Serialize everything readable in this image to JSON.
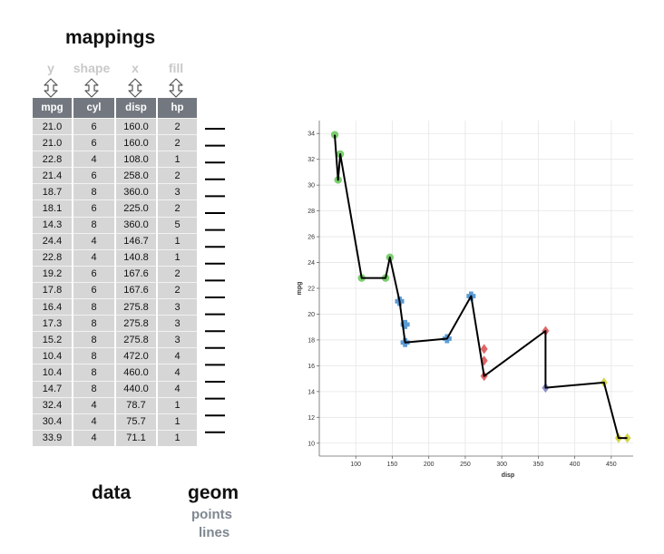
{
  "titles": {
    "mappings": "mappings",
    "data": "data",
    "geom": "geom"
  },
  "geom": {
    "points": "points",
    "lines": "lines"
  },
  "mappings": [
    {
      "aes": "y",
      "column": "mpg"
    },
    {
      "aes": "shape",
      "column": "cyl"
    },
    {
      "aes": "x",
      "column": "disp"
    },
    {
      "aes": "fill",
      "column": "hp"
    }
  ],
  "table": {
    "headers": [
      "mpg",
      "cyl",
      "disp",
      "hp"
    ],
    "rows": [
      [
        "21.0",
        "6",
        "160.0",
        "2"
      ],
      [
        "21.0",
        "6",
        "160.0",
        "2"
      ],
      [
        "22.8",
        "4",
        "108.0",
        "1"
      ],
      [
        "21.4",
        "6",
        "258.0",
        "2"
      ],
      [
        "18.7",
        "8",
        "360.0",
        "3"
      ],
      [
        "18.1",
        "6",
        "225.0",
        "2"
      ],
      [
        "14.3",
        "8",
        "360.0",
        "5"
      ],
      [
        "24.4",
        "4",
        "146.7",
        "1"
      ],
      [
        "22.8",
        "4",
        "140.8",
        "1"
      ],
      [
        "19.2",
        "6",
        "167.6",
        "2"
      ],
      [
        "17.8",
        "6",
        "167.6",
        "2"
      ],
      [
        "16.4",
        "8",
        "275.8",
        "3"
      ],
      [
        "17.3",
        "8",
        "275.8",
        "3"
      ],
      [
        "15.2",
        "8",
        "275.8",
        "3"
      ],
      [
        "10.4",
        "8",
        "472.0",
        "4"
      ],
      [
        "10.4",
        "8",
        "460.0",
        "4"
      ],
      [
        "14.7",
        "8",
        "440.0",
        "4"
      ],
      [
        "32.4",
        "4",
        "78.7",
        "1"
      ],
      [
        "30.4",
        "4",
        "75.7",
        "1"
      ],
      [
        "33.9",
        "4",
        "71.1",
        "1"
      ]
    ]
  },
  "chart_data": {
    "type": "scatter",
    "xlabel": "disp",
    "ylabel": "mpg",
    "xlim": [
      50,
      480
    ],
    "ylim": [
      9,
      35
    ],
    "x_ticks": [
      "100",
      "150",
      "200",
      "250",
      "300",
      "350",
      "400",
      "450"
    ],
    "y_ticks": [
      "10",
      "12",
      "14",
      "16",
      "18",
      "20",
      "22",
      "24",
      "26",
      "28",
      "30",
      "32",
      "34"
    ],
    "grid": true,
    "path": [
      [
        71.1,
        33.9
      ],
      [
        75.7,
        30.4
      ],
      [
        78.7,
        32.4
      ],
      [
        108.0,
        22.8
      ],
      [
        140.8,
        22.8
      ],
      [
        146.7,
        24.4
      ],
      [
        160.0,
        21.0
      ],
      [
        167.6,
        17.8
      ],
      [
        225.0,
        18.1
      ],
      [
        258.0,
        21.4
      ],
      [
        275.8,
        15.2
      ],
      [
        360.0,
        18.7
      ],
      [
        360.0,
        14.3
      ],
      [
        440.0,
        14.7
      ],
      [
        460.0,
        10.4
      ],
      [
        472.0,
        10.4
      ]
    ],
    "points": [
      {
        "disp": 160.0,
        "mpg": 21.0,
        "cyl": 6,
        "hp": 2
      },
      {
        "disp": 160.0,
        "mpg": 21.0,
        "cyl": 6,
        "hp": 2
      },
      {
        "disp": 108.0,
        "mpg": 22.8,
        "cyl": 4,
        "hp": 1
      },
      {
        "disp": 258.0,
        "mpg": 21.4,
        "cyl": 6,
        "hp": 2
      },
      {
        "disp": 360.0,
        "mpg": 18.7,
        "cyl": 8,
        "hp": 3
      },
      {
        "disp": 225.0,
        "mpg": 18.1,
        "cyl": 6,
        "hp": 2
      },
      {
        "disp": 360.0,
        "mpg": 14.3,
        "cyl": 8,
        "hp": 5
      },
      {
        "disp": 146.7,
        "mpg": 24.4,
        "cyl": 4,
        "hp": 1
      },
      {
        "disp": 140.8,
        "mpg": 22.8,
        "cyl": 4,
        "hp": 1
      },
      {
        "disp": 167.6,
        "mpg": 19.2,
        "cyl": 6,
        "hp": 2
      },
      {
        "disp": 167.6,
        "mpg": 17.8,
        "cyl": 6,
        "hp": 2
      },
      {
        "disp": 275.8,
        "mpg": 16.4,
        "cyl": 8,
        "hp": 3
      },
      {
        "disp": 275.8,
        "mpg": 17.3,
        "cyl": 8,
        "hp": 3
      },
      {
        "disp": 275.8,
        "mpg": 15.2,
        "cyl": 8,
        "hp": 3
      },
      {
        "disp": 472.0,
        "mpg": 10.4,
        "cyl": 8,
        "hp": 4
      },
      {
        "disp": 460.0,
        "mpg": 10.4,
        "cyl": 8,
        "hp": 4
      },
      {
        "disp": 440.0,
        "mpg": 14.7,
        "cyl": 8,
        "hp": 4
      },
      {
        "disp": 78.7,
        "mpg": 32.4,
        "cyl": 4,
        "hp": 1
      },
      {
        "disp": 75.7,
        "mpg": 30.4,
        "cyl": 4,
        "hp": 1
      },
      {
        "disp": 71.1,
        "mpg": 33.9,
        "cyl": 4,
        "hp": 1
      }
    ],
    "shape_map": {
      "4": "circle",
      "6": "plus",
      "8": "diamond"
    },
    "fill_colors": {
      "1": "#7bcf6e",
      "2": "#5b9bd5",
      "3": "#e06666",
      "4": "#d4d44a",
      "5": "#8e8ec9"
    },
    "line_color": "#000000"
  }
}
